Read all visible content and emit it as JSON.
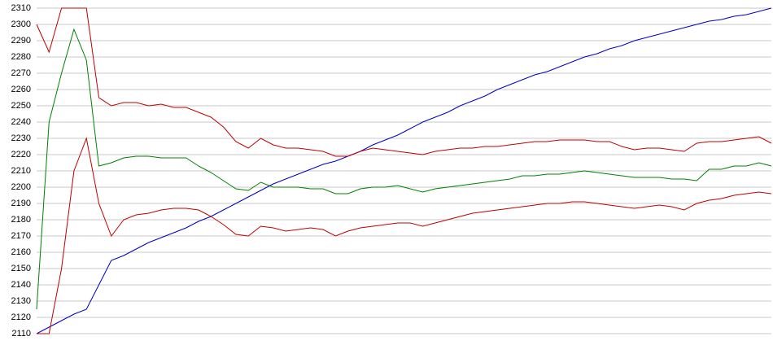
{
  "chart_data": {
    "type": "line",
    "categories": [
      null,
      null,
      null,
      null,
      null,
      null,
      null,
      null,
      null,
      null,
      null,
      null,
      null,
      null,
      null,
      null,
      null,
      null,
      null,
      null,
      null,
      null,
      null,
      null,
      null,
      null,
      null,
      null,
      null,
      null,
      null,
      null,
      null,
      null,
      null,
      null,
      null,
      null,
      null,
      null,
      null,
      null,
      null,
      null,
      null,
      null,
      null,
      null,
      null,
      null,
      null,
      null,
      null,
      null,
      null,
      null,
      null,
      null,
      null,
      null
    ],
    "ylim": [
      2110,
      2310
    ],
    "yticks": [
      2110,
      2120,
      2130,
      2140,
      2150,
      2160,
      2170,
      2180,
      2190,
      2200,
      2210,
      2220,
      2230,
      2240,
      2250,
      2260,
      2270,
      2280,
      2290,
      2300,
      2310
    ],
    "grid": true,
    "series": [
      {
        "color": "#0000c0",
        "values": [
          2110,
          2114,
          2118,
          2122,
          2125,
          2140,
          2155,
          2158,
          2162,
          2166,
          2169,
          2172,
          2175,
          2179,
          2182,
          2186,
          2190,
          2194,
          2198,
          2202,
          2205,
          2208,
          2211,
          2214,
          2216,
          2219,
          2222,
          2226,
          2229,
          2232,
          2236,
          2240,
          2243,
          2246,
          2250,
          2253,
          2256,
          2260,
          2263,
          2266,
          2269,
          2271,
          2274,
          2277,
          2280,
          2282,
          2285,
          2287,
          2290,
          2292,
          2294,
          2296,
          2298,
          2300,
          2302,
          2303,
          2305,
          2306,
          2308,
          2310
        ]
      },
      {
        "color": "#c00000",
        "values": [
          2300,
          2283,
          2310,
          2310,
          2310,
          2255,
          2250,
          2252,
          2252,
          2250,
          2251,
          2249,
          2249,
          2246,
          2243,
          2237,
          2228,
          2224,
          2230,
          2226,
          2224,
          2224,
          2223,
          2222,
          2219,
          2219,
          2222,
          2224,
          2223,
          2222,
          2221,
          2220,
          2222,
          2223,
          2224,
          2224,
          2225,
          2225,
          2226,
          2227,
          2228,
          2228,
          2229,
          2229,
          2229,
          2228,
          2228,
          2225,
          2223,
          2224,
          2224,
          2223,
          2222,
          2227,
          2228,
          2228,
          2229,
          2230,
          2231,
          2227
        ]
      },
      {
        "color": "#008000",
        "values": [
          2125,
          2240,
          2270,
          2297,
          2278,
          2213,
          2215,
          2218,
          2219,
          2219,
          2218,
          2218,
          2218,
          2213,
          2209,
          2204,
          2199,
          2198,
          2203,
          2200,
          2200,
          2200,
          2199,
          2199,
          2196,
          2196,
          2199,
          2200,
          2200,
          2201,
          2199,
          2197,
          2199,
          2200,
          2201,
          2202,
          2203,
          2204,
          2205,
          2207,
          2207,
          2208,
          2208,
          2209,
          2210,
          2209,
          2208,
          2207,
          2206,
          2206,
          2206,
          2205,
          2205,
          2204,
          2211,
          2211,
          2213,
          2213,
          2215,
          2213
        ]
      },
      {
        "color": "#c00000",
        "values": [
          2110,
          2110,
          2150,
          2210,
          2230,
          2190,
          2170,
          2180,
          2183,
          2184,
          2186,
          2187,
          2187,
          2186,
          2182,
          2177,
          2171,
          2170,
          2176,
          2175,
          2173,
          2174,
          2175,
          2174,
          2170,
          2173,
          2175,
          2176,
          2177,
          2178,
          2178,
          2176,
          2178,
          2180,
          2182,
          2184,
          2185,
          2186,
          2187,
          2188,
          2189,
          2190,
          2190,
          2191,
          2191,
          2190,
          2189,
          2188,
          2187,
          2188,
          2189,
          2188,
          2186,
          2190,
          2192,
          2193,
          2195,
          2196,
          2197,
          2196
        ]
      }
    ]
  }
}
